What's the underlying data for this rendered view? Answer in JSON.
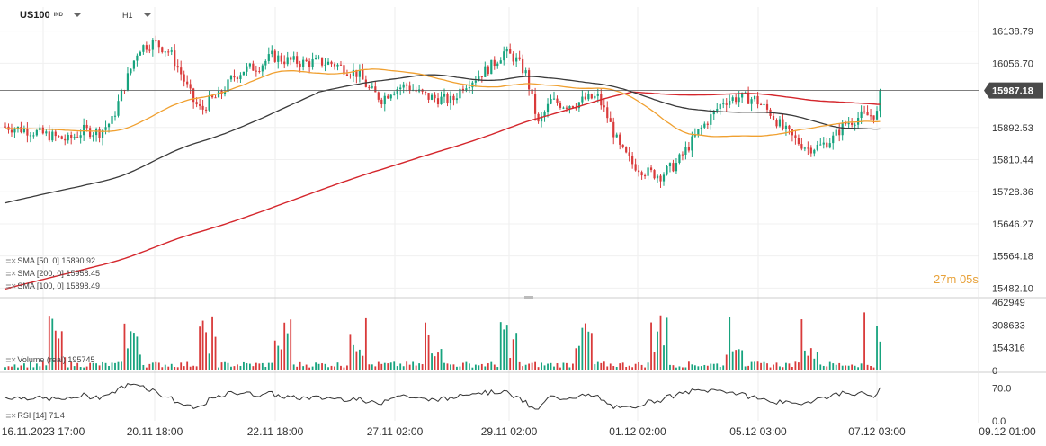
{
  "header": {
    "symbol": "US100",
    "symbol_tag": "IND",
    "timeframe": "H1"
  },
  "countdown": {
    "minutes": "27",
    "minutes_unit": "m",
    "seconds": "05",
    "seconds_unit": "s"
  },
  "legends": {
    "sma50": "SMA [50, 0]  15890.92",
    "sma200": "SMA [200, 0]  15958.45",
    "sma100": "SMA [100, 0]  15898.49",
    "volume": "Volume (real)  195745",
    "rsi": "RSI [14]  71.4"
  },
  "colors": {
    "up": "#17a37e",
    "down": "#d93a3a",
    "sma50": "#f0a030",
    "sma100": "#3a3a3a",
    "sma200": "#d4262c",
    "rsi": "#333333",
    "price_line": "#555555",
    "timer": "#e8a23a"
  },
  "chart_data": [
    {
      "type": "candlestick",
      "series": [
        {
          "name": "SMA [50, 0]"
        },
        {
          "name": "SMA [200, 0]"
        },
        {
          "name": "SMA [100, 0]"
        }
      ],
      "ylim": [
        15460,
        16200
      ],
      "yticks": [
        "16138.79",
        "16056.70",
        "15892.53",
        "15810.44",
        "15728.36",
        "15646.27",
        "15564.18",
        "15482.10"
      ],
      "current_price": 15987.18,
      "current_price_label": "15987.18",
      "xticks": [
        "16.11.2023  17:00",
        "20.11  18:00",
        "22.11  18:00",
        "27.11  02:00",
        "29.11  02:00",
        "01.12  02:00",
        "05.12  03:00",
        "07.12  03:00",
        "09.12  01:00"
      ],
      "last_values": {
        "sma50": 15890.92,
        "sma200": 15958.45,
        "sma100": 15898.49
      }
    },
    {
      "type": "bar",
      "series": [
        {
          "name": "Volume (real)"
        }
      ],
      "ylim": [
        0,
        462949
      ],
      "yticks": [
        "462949",
        "308633",
        "154316",
        "0"
      ],
      "last_value": 195745
    },
    {
      "type": "line",
      "series": [
        {
          "name": "RSI [14]"
        }
      ],
      "ylim": [
        0,
        100
      ],
      "yticks": [
        "70.0",
        "0.0"
      ],
      "last_value": 71.4
    }
  ]
}
